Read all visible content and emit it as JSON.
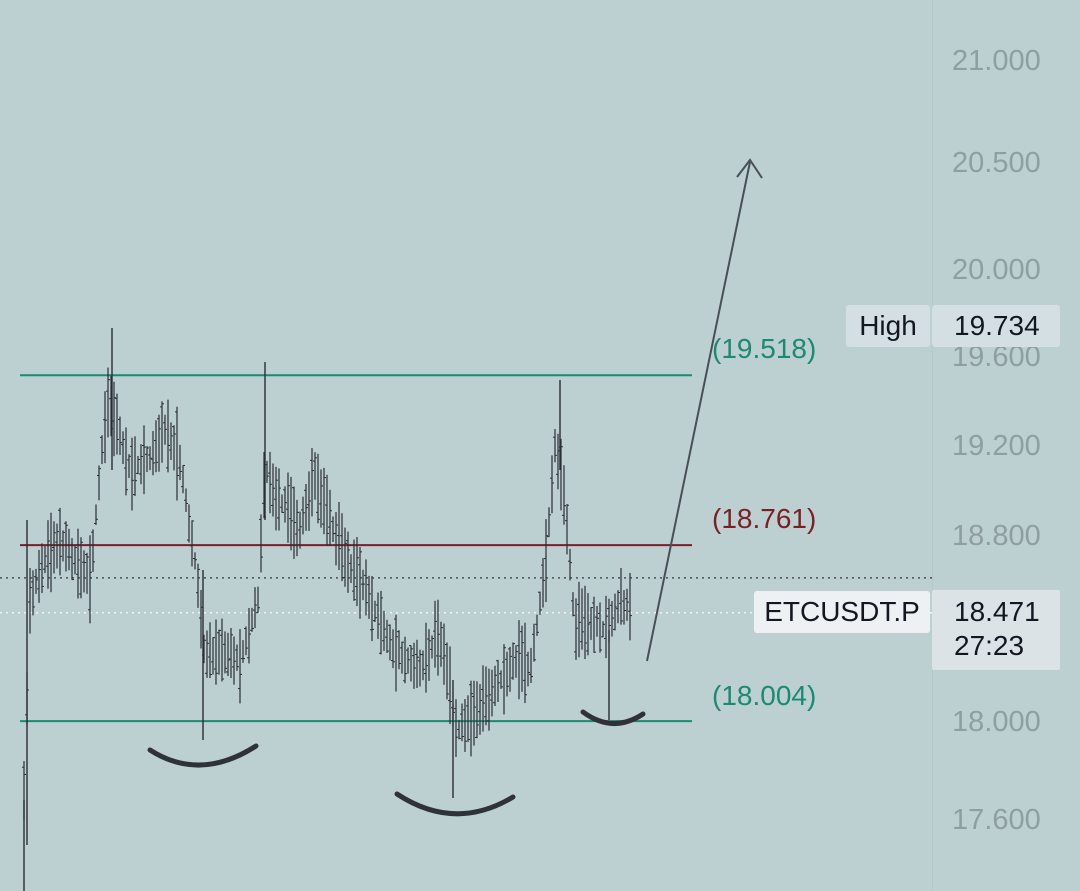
{
  "chart_data": {
    "type": "candlestick",
    "symbol": "ETCUSDT.P",
    "y_ticks": [
      "21.000",
      "20.500",
      "20.000",
      "19.600",
      "19.200",
      "18.800",
      "18.000",
      "17.600"
    ],
    "levels": [
      {
        "label": "(19.518)",
        "value": 19.518,
        "color": "#1b8a72"
      },
      {
        "label": "(18.761)",
        "value": 18.761,
        "color": "#7a1f24"
      },
      {
        "label": "(18.004)",
        "value": 18.004,
        "color": "#1b8a72"
      }
    ],
    "high": {
      "label": "High",
      "value": "19.734"
    },
    "last_price": {
      "value": "18.471",
      "countdown": "27:23",
      "dotted_level": 18.62
    }
  }
}
